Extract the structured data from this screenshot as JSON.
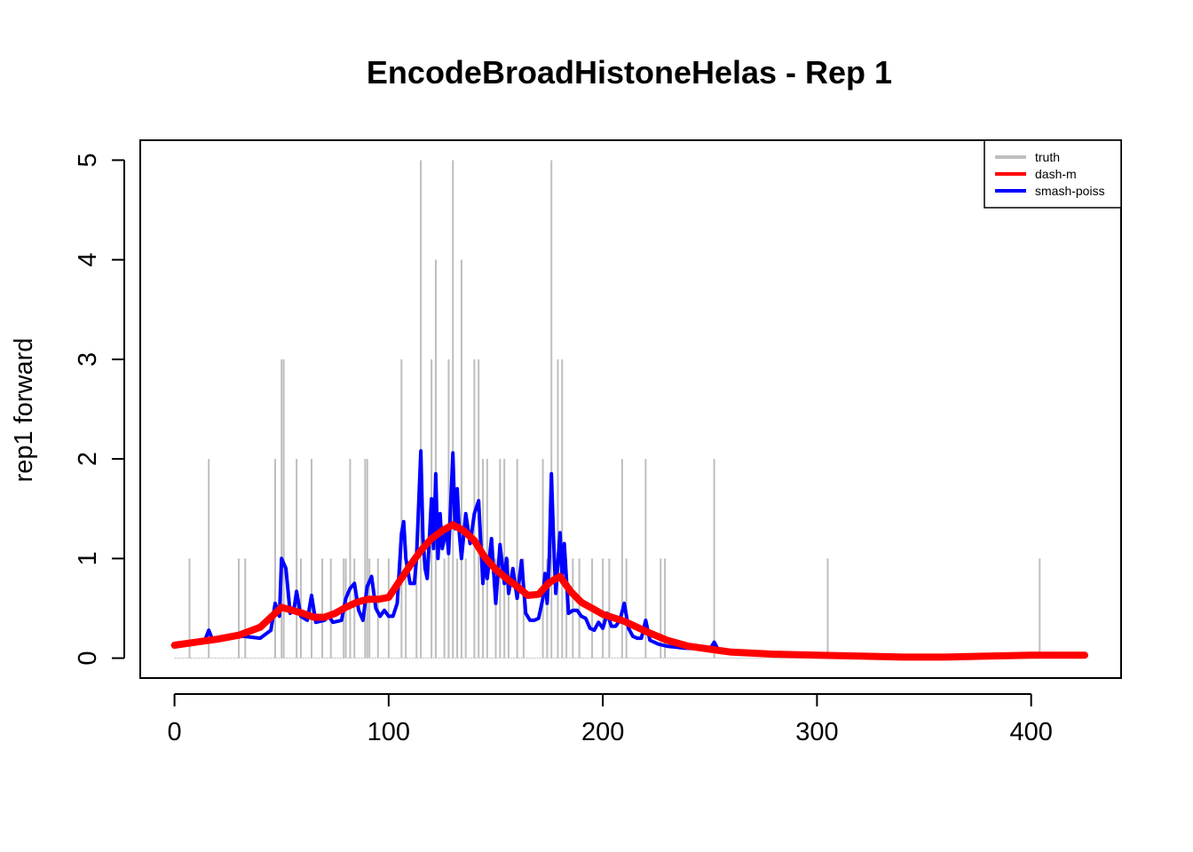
{
  "chart_data": {
    "type": "line",
    "title": "EncodeBroadHistoneHelas - Rep 1",
    "xlabel": "",
    "ylabel": "rep1 forward",
    "xlim": [
      -16,
      442
    ],
    "ylim": [
      -0.2,
      5.2
    ],
    "x_ticks": [
      0,
      100,
      200,
      300,
      400
    ],
    "y_ticks": [
      0,
      1,
      2,
      3,
      4,
      5
    ],
    "legend_position": "top-right",
    "truth_bars": {
      "x": [
        7,
        16,
        30,
        33,
        47,
        50,
        51,
        57,
        59,
        64,
        69,
        73,
        79,
        80,
        82,
        84,
        89,
        90,
        91,
        95,
        100,
        106,
        108,
        113,
        115,
        120,
        122,
        126,
        128,
        130,
        132,
        134,
        136,
        140,
        142,
        144,
        146,
        150,
        152,
        154,
        156,
        160,
        163,
        172,
        174,
        176,
        179,
        181,
        183,
        186,
        189,
        195,
        200,
        203,
        209,
        211,
        220,
        227,
        229,
        252,
        305,
        404
      ],
      "values": [
        1,
        2,
        1,
        1,
        2,
        3,
        3,
        2,
        1,
        2,
        1,
        1,
        1,
        1,
        2,
        1,
        2,
        2,
        1,
        1,
        1,
        3,
        1,
        1,
        5,
        3,
        4,
        1,
        3,
        5,
        1,
        4,
        1,
        3,
        3,
        2,
        2,
        1,
        2,
        2,
        1,
        2,
        1,
        2,
        1,
        5,
        3,
        3,
        1,
        1,
        1,
        1,
        1,
        1,
        2,
        1,
        2,
        1,
        1,
        2,
        1,
        1
      ]
    },
    "series": [
      {
        "name": "dash-m",
        "x": [
          0,
          10,
          20,
          30,
          40,
          45,
          50,
          55,
          60,
          65,
          70,
          75,
          80,
          85,
          90,
          95,
          100,
          105,
          110,
          115,
          120,
          125,
          130,
          135,
          140,
          145,
          150,
          155,
          160,
          165,
          170,
          175,
          180,
          185,
          190,
          195,
          200,
          210,
          220,
          230,
          240,
          250,
          260,
          280,
          300,
          320,
          340,
          360,
          380,
          400,
          425
        ],
        "values": [
          0.13,
          0.16,
          0.19,
          0.23,
          0.31,
          0.41,
          0.51,
          0.48,
          0.45,
          0.41,
          0.41,
          0.45,
          0.51,
          0.56,
          0.59,
          0.59,
          0.61,
          0.77,
          0.93,
          1.08,
          1.2,
          1.28,
          1.34,
          1.28,
          1.18,
          1.01,
          0.89,
          0.8,
          0.72,
          0.63,
          0.64,
          0.76,
          0.82,
          0.67,
          0.56,
          0.5,
          0.44,
          0.37,
          0.27,
          0.18,
          0.12,
          0.09,
          0.06,
          0.04,
          0.03,
          0.02,
          0.01,
          0.01,
          0.02,
          0.03,
          0.03
        ]
      },
      {
        "name": "smash-poiss",
        "x": [
          0,
          10,
          14,
          16,
          18,
          25,
          32,
          40,
          45,
          47,
          49,
          50,
          52,
          54,
          56,
          57,
          59,
          62,
          64,
          66,
          70,
          72,
          74,
          78,
          80,
          82,
          84,
          86,
          88,
          90,
          92,
          94,
          96,
          98,
          100,
          102,
          104,
          106,
          107,
          108,
          110,
          112,
          113,
          115,
          116,
          117,
          118,
          120,
          121,
          122,
          123,
          124,
          125,
          126,
          127,
          128,
          130,
          131,
          132,
          133,
          134,
          136,
          138,
          140,
          142,
          144,
          145,
          146,
          148,
          150,
          152,
          154,
          155,
          156,
          158,
          160,
          162,
          164,
          166,
          168,
          170,
          172,
          173,
          174,
          175,
          176,
          177,
          178,
          180,
          181,
          182,
          184,
          186,
          188,
          190,
          192,
          194,
          196,
          198,
          200,
          202,
          204,
          206,
          208,
          210,
          212,
          214,
          216,
          218,
          220,
          222,
          226,
          230,
          238,
          250,
          252,
          254,
          258,
          262
        ],
        "values": [
          0.13,
          0.16,
          0.17,
          0.28,
          0.17,
          0.2,
          0.22,
          0.2,
          0.28,
          0.55,
          0.42,
          1.0,
          0.9,
          0.45,
          0.52,
          0.67,
          0.42,
          0.38,
          0.63,
          0.36,
          0.38,
          0.42,
          0.36,
          0.38,
          0.6,
          0.7,
          0.75,
          0.48,
          0.38,
          0.72,
          0.82,
          0.5,
          0.42,
          0.48,
          0.42,
          0.42,
          0.55,
          1.25,
          1.37,
          1.0,
          0.75,
          0.75,
          1.0,
          2.08,
          1.2,
          0.9,
          0.8,
          1.6,
          1.1,
          1.85,
          1.0,
          1.45,
          1.1,
          1.2,
          1.3,
          1.05,
          2.06,
          1.3,
          1.7,
          1.25,
          1.0,
          1.45,
          1.15,
          1.45,
          1.58,
          0.75,
          1.0,
          0.8,
          1.2,
          0.55,
          1.14,
          0.75,
          1.0,
          0.65,
          0.9,
          0.6,
          0.98,
          0.45,
          0.38,
          0.38,
          0.4,
          0.6,
          0.85,
          0.55,
          1.0,
          1.85,
          1.2,
          0.65,
          1.26,
          0.8,
          1.15,
          0.45,
          0.48,
          0.48,
          0.42,
          0.4,
          0.3,
          0.28,
          0.36,
          0.3,
          0.45,
          0.32,
          0.32,
          0.38,
          0.55,
          0.3,
          0.22,
          0.2,
          0.2,
          0.38,
          0.18,
          0.14,
          0.12,
          0.1,
          0.09,
          0.16,
          0.08,
          0.06,
          0.05
        ]
      }
    ],
    "legend": [
      {
        "label": "truth",
        "color": "#bebebe"
      },
      {
        "label": "dash-m",
        "color": "#ff0000"
      },
      {
        "label": "smash-poiss",
        "color": "#0000ff"
      }
    ]
  }
}
